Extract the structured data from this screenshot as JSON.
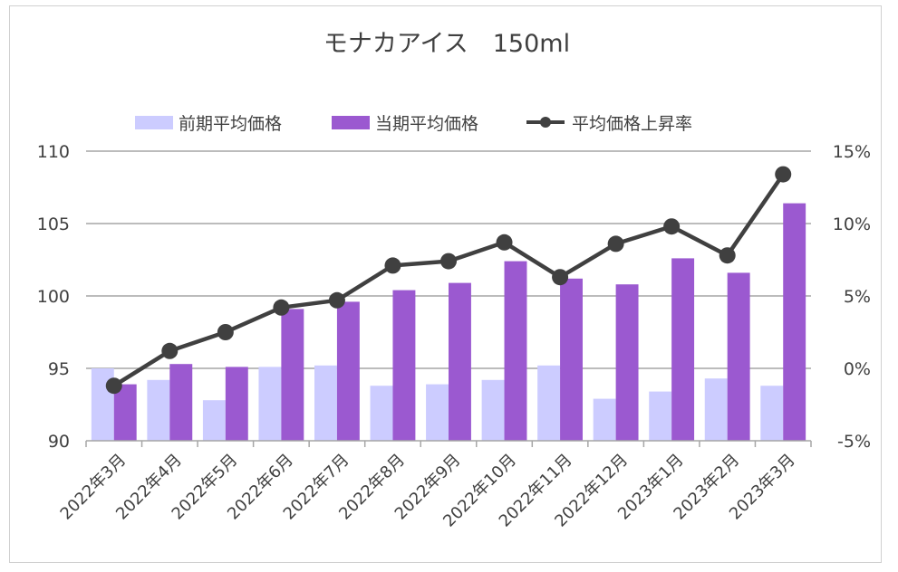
{
  "chart_data": {
    "type": "bar",
    "title": "モナカアイス　150ml",
    "categories": [
      "2022年3月",
      "2022年4月",
      "2022年5月",
      "2022年6月",
      "2022年7月",
      "2022年8月",
      "2022年9月",
      "2022年10月",
      "2022年11月",
      "2022年12月",
      "2023年1月",
      "2023年2月",
      "2023年3月"
    ],
    "series": [
      {
        "name": "前期平均価格",
        "type": "bar",
        "axis": "left",
        "color": "#ccccff",
        "values": [
          95.0,
          94.2,
          92.8,
          95.1,
          95.2,
          93.8,
          93.9,
          94.2,
          95.2,
          92.9,
          93.4,
          94.3,
          93.8
        ]
      },
      {
        "name": "当期平均価格",
        "type": "bar",
        "axis": "left",
        "color": "#9b59d0",
        "values": [
          93.9,
          95.3,
          95.1,
          99.1,
          99.6,
          100.4,
          100.9,
          102.4,
          101.2,
          100.8,
          102.6,
          101.6,
          106.4
        ]
      },
      {
        "name": "平均価格上昇率",
        "type": "line",
        "axis": "right",
        "color": "#404040",
        "values": [
          -1.2,
          1.2,
          2.5,
          4.2,
          4.7,
          7.1,
          7.4,
          8.7,
          6.3,
          8.6,
          9.8,
          7.8,
          13.4
        ]
      }
    ],
    "y_left": {
      "min": 90,
      "max": 110,
      "ticks": [
        "90",
        "95",
        "100",
        "105",
        "110"
      ]
    },
    "y_right": {
      "min": -5,
      "max": 15,
      "ticks": [
        "-5%",
        "0%",
        "5%",
        "10%",
        "15%"
      ]
    },
    "legend_position": "top",
    "grid": true
  }
}
